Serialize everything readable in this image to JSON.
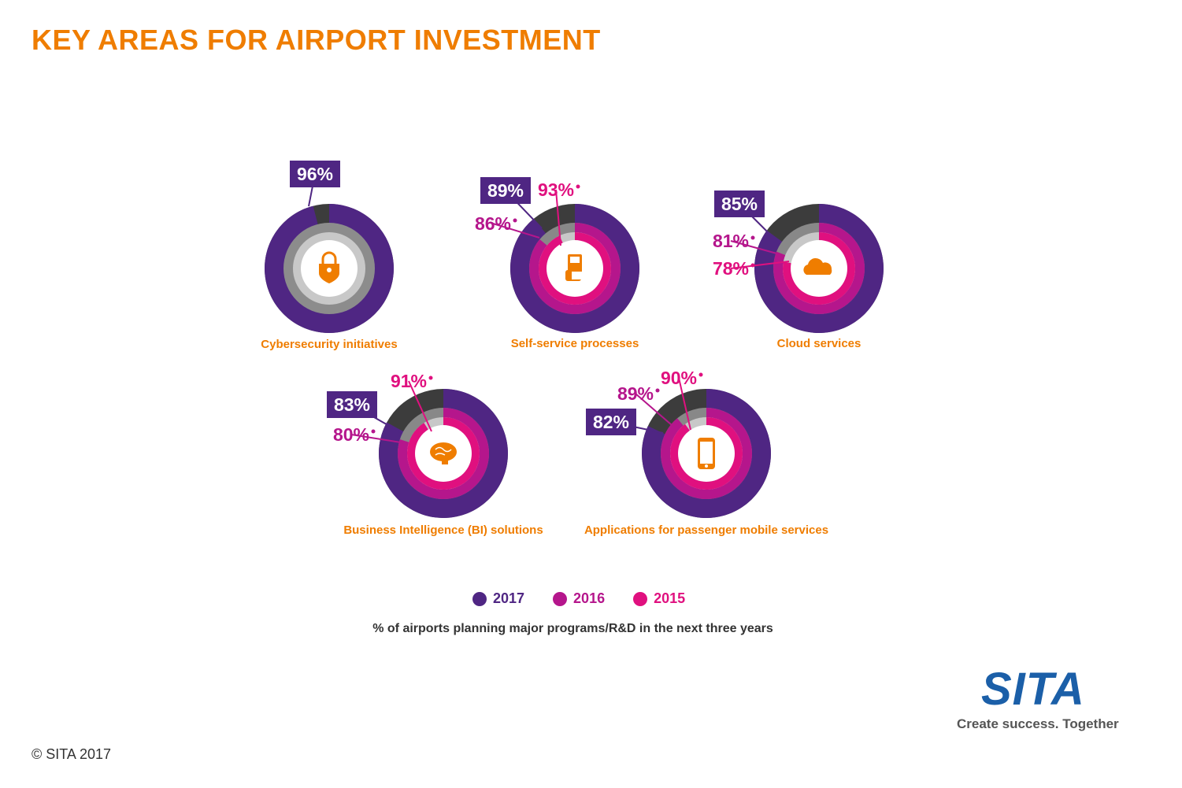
{
  "title": "KEY AREAS FOR AIRPORT INVESTMENT",
  "colors": {
    "title": "#ef7d00",
    "y2017": "#4f2683",
    "y2016": "#b5168c",
    "y2015": "#e0107f",
    "remainder_outer": "#3c3c3c",
    "remainder_middle": "#888888",
    "remainder_inner": "#c8c8c8",
    "icon": "#ef7d00",
    "sita_blue": "#1b5fa8"
  },
  "chart_data": {
    "type": "donut",
    "ylim": [
      0,
      100
    ],
    "unit": "%",
    "series_order": [
      "2017",
      "2016",
      "2015"
    ],
    "categories": [
      {
        "name": "Cybersecurity initiatives",
        "icon": "lock-icon",
        "values": {
          "2017": 96
        },
        "labels": {
          "2017": "96%"
        }
      },
      {
        "name": "Self-service processes",
        "icon": "kiosk-icon",
        "values": {
          "2017": 89,
          "2016": 86,
          "2015": 93
        },
        "labels": {
          "2017": "89%",
          "2016": "86%",
          "2015": "93%"
        }
      },
      {
        "name": "Cloud services",
        "icon": "cloud-icon",
        "values": {
          "2017": 85,
          "2016": 81,
          "2015": 78
        },
        "labels": {
          "2017": "85%",
          "2016": "81%",
          "2015": "78%"
        }
      },
      {
        "name": "Business Intelligence (BI) solutions",
        "icon": "brain-icon",
        "values": {
          "2017": 83,
          "2016": 80,
          "2015": 91
        },
        "labels": {
          "2017": "83%",
          "2016": "80%",
          "2015": "91%"
        }
      },
      {
        "name": "Applications for passenger mobile services",
        "icon": "smartphone-icon",
        "values": {
          "2017": 82,
          "2016": 89,
          "2015": 90
        },
        "labels": {
          "2017": "82%",
          "2016": "89%",
          "2015": "90%"
        }
      }
    ]
  },
  "legend": [
    {
      "label": "2017",
      "color": "#4f2683"
    },
    {
      "label": "2016",
      "color": "#b5168c"
    },
    {
      "label": "2015",
      "color": "#e0107f"
    }
  ],
  "subtitle": "% of airports planning major programs/R&D in the next three years",
  "logo_text": "SITA",
  "tagline": "Create success. Together",
  "copyright": "© SITA 2017"
}
